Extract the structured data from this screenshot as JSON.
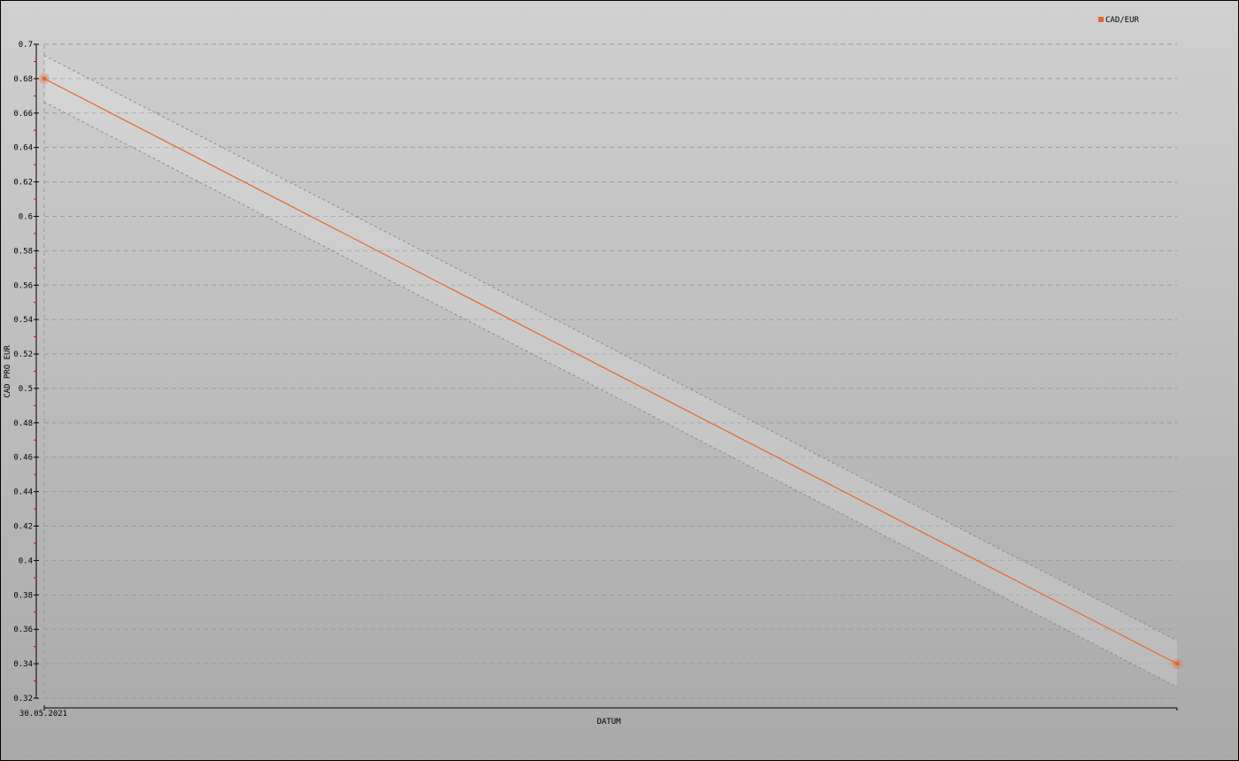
{
  "chart_data": {
    "type": "line",
    "title": "",
    "xlabel": "DATUM",
    "ylabel": "CAD PRO EUR",
    "x_tick_labels": [
      "30.05.2021"
    ],
    "ylim": [
      0.32,
      0.7
    ],
    "y_ticks": [
      0.7,
      0.68,
      0.66,
      0.64,
      0.62,
      0.6,
      0.58,
      0.56,
      0.54,
      0.52,
      0.5,
      0.48,
      0.46,
      0.44,
      0.42,
      0.4,
      0.38,
      0.36,
      0.34,
      0.32
    ],
    "grid": true,
    "legend_position": "top-right",
    "series": [
      {
        "name": "CAD/EUR",
        "color": "#e8642c",
        "values": [
          0.68,
          0.34
        ],
        "band": 0.0135
      }
    ]
  }
}
